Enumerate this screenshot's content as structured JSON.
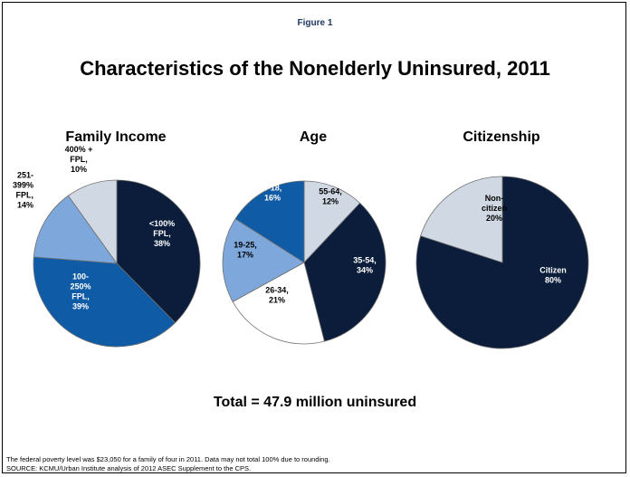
{
  "figure_label": "Figure 1",
  "title": "Characteristics of the Nonelderly Uninsured, 2011",
  "total_label": "Total = 47.9 million uninsured",
  "footnote": "The federal poverty level was $23,050 for a family of four in 2011. Data may not total 100% due to rounding.",
  "source": "SOURCE: KCMU/Urban Institute analysis of 2012 ASEC Supplement to the CPS.",
  "colors": {
    "navy": "#0b1d3a",
    "blue": "#0f5ba5",
    "light_blue": "#7ea8dc",
    "pale_gray": "#d0d9e3",
    "white": "#ffffff"
  },
  "chart_data": [
    {
      "type": "pie",
      "title": "Family Income",
      "slices": [
        {
          "label": "<100% FPL, 38%",
          "lines": [
            "<100%",
            "FPL,",
            "38%"
          ],
          "value": 38,
          "color": "#0b1d3a",
          "text_color": "#ffffff"
        },
        {
          "label": "100-250% FPL, 39%",
          "lines": [
            "100-",
            "250%",
            "FPL,",
            "39%"
          ],
          "value": 39,
          "color": "#0f5ba5",
          "text_color": "#ffffff"
        },
        {
          "label": "251-399% FPL, 14%",
          "lines": [
            "251-",
            "399%",
            "FPL,",
            "14%"
          ],
          "value": 14,
          "color": "#7ea8dc",
          "text_color": "#000000"
        },
        {
          "label": "400% + FPL, 10%",
          "lines": [
            "400% +",
            "FPL,",
            "10%"
          ],
          "value": 10,
          "color": "#d0d9e3",
          "text_color": "#000000"
        }
      ]
    },
    {
      "type": "pie",
      "title": "Age",
      "slices": [
        {
          "label": "55-64, 12%",
          "lines": [
            "55-64,",
            "12%"
          ],
          "value": 12,
          "color": "#d0d9e3",
          "text_color": "#000000"
        },
        {
          "label": "35-54, 34%",
          "lines": [
            "35-54,",
            "34%"
          ],
          "value": 34,
          "color": "#0b1d3a",
          "text_color": "#ffffff"
        },
        {
          "label": "26-34, 21%",
          "lines": [
            "26-34,",
            "21%"
          ],
          "value": 21,
          "color": "#ffffff",
          "text_color": "#000000"
        },
        {
          "label": "19-25, 17%",
          "lines": [
            "19-25,",
            "17%"
          ],
          "value": 17,
          "color": "#7ea8dc",
          "text_color": "#000000"
        },
        {
          "label": "0-18, 16%",
          "lines": [
            "0-18,",
            "16%"
          ],
          "value": 16,
          "color": "#0f5ba5",
          "text_color": "#ffffff"
        }
      ]
    },
    {
      "type": "pie",
      "title": "Citizenship",
      "slices": [
        {
          "label": "Citizen 80%",
          "lines": [
            "Citizen",
            "80%"
          ],
          "value": 80,
          "color": "#0b1d3a",
          "text_color": "#ffffff"
        },
        {
          "label": "Non-citizen 20%",
          "lines": [
            "Non-",
            "citizen",
            "20%"
          ],
          "value": 20,
          "color": "#d0d9e3",
          "text_color": "#000000"
        }
      ]
    }
  ]
}
